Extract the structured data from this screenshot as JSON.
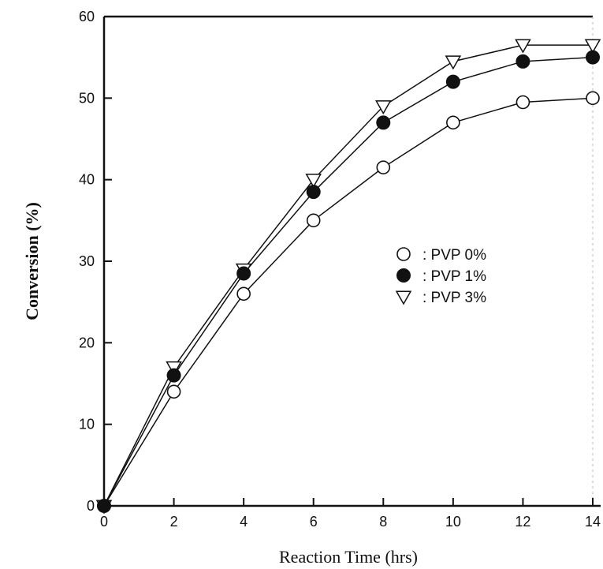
{
  "chart_data": {
    "type": "line",
    "title": "",
    "xlabel": "Reaction Time (hrs)",
    "ylabel": "Conversion (%)",
    "xlim": [
      0,
      14
    ],
    "ylim": [
      0,
      60
    ],
    "x_ticks": [
      0,
      2,
      4,
      6,
      8,
      10,
      12,
      14
    ],
    "y_ticks": [
      0,
      10,
      20,
      30,
      40,
      50,
      60
    ],
    "grid": false,
    "legend_placement": "center-right",
    "x": [
      0,
      2,
      4,
      6,
      8,
      10,
      12,
      14
    ],
    "series": [
      {
        "name": "PVP 0%",
        "legend_label": ": PVP 0%",
        "marker": "open-circle",
        "values": [
          0,
          14,
          26,
          35,
          41.5,
          47,
          49.5,
          50
        ]
      },
      {
        "name": "PVP 1%",
        "legend_label": ": PVP 1%",
        "marker": "filled-circle",
        "values": [
          0,
          16,
          28.5,
          38.5,
          47,
          52,
          54.5,
          55
        ]
      },
      {
        "name": "PVP 3%",
        "legend_label": ": PVP 3%",
        "marker": "open-triangle-down",
        "values": [
          0,
          17,
          29,
          40,
          49,
          54.5,
          56.5,
          56.5
        ]
      }
    ],
    "colors": {
      "line": "#111111",
      "background": "#ffffff"
    }
  }
}
